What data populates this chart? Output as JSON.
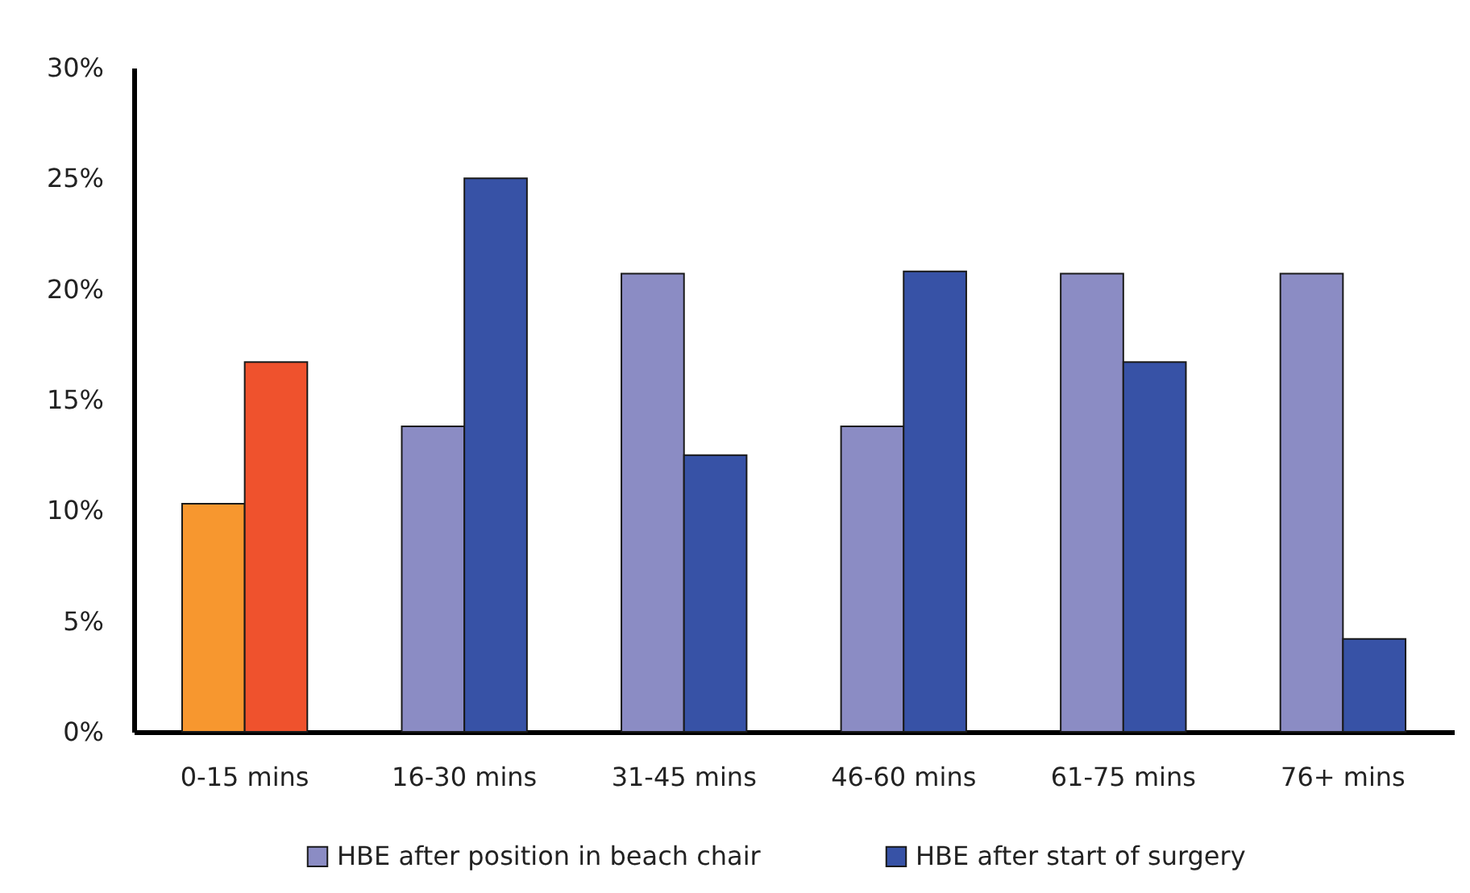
{
  "chart_data": {
    "type": "bar",
    "categories": [
      "0-15 mins",
      "16-30 mins",
      "31-45 mins",
      "46-60 mins",
      "61-75 mins",
      "76+ mins"
    ],
    "series": [
      {
        "name": "HBE after position in beach chair",
        "color": "#8b8cc4",
        "colors": [
          "#f7972f",
          "#8b8cc4",
          "#8b8cc4",
          "#8b8cc4",
          "#8b8cc4",
          "#8b8cc4"
        ],
        "values": [
          10.3,
          13.8,
          20.7,
          13.8,
          20.7,
          20.7
        ]
      },
      {
        "name": "HBE after start of surgery",
        "color": "#3752a6",
        "colors": [
          "#ef522d",
          "#3752a6",
          "#3752a6",
          "#3752a6",
          "#3752a6",
          "#3752a6"
        ],
        "values": [
          16.7,
          25,
          12.5,
          20.8,
          16.7,
          4.2
        ]
      }
    ],
    "ylim": [
      0,
      30
    ],
    "yticks": [
      {
        "value": 0,
        "label": "0%"
      },
      {
        "value": 5,
        "label": "5%"
      },
      {
        "value": 10,
        "label": "10%"
      },
      {
        "value": 15,
        "label": "15%"
      },
      {
        "value": 20,
        "label": "20%"
      },
      {
        "value": 25,
        "label": "25%"
      },
      {
        "value": 30,
        "label": "30%"
      }
    ],
    "grid": false,
    "legend": "bottom"
  }
}
